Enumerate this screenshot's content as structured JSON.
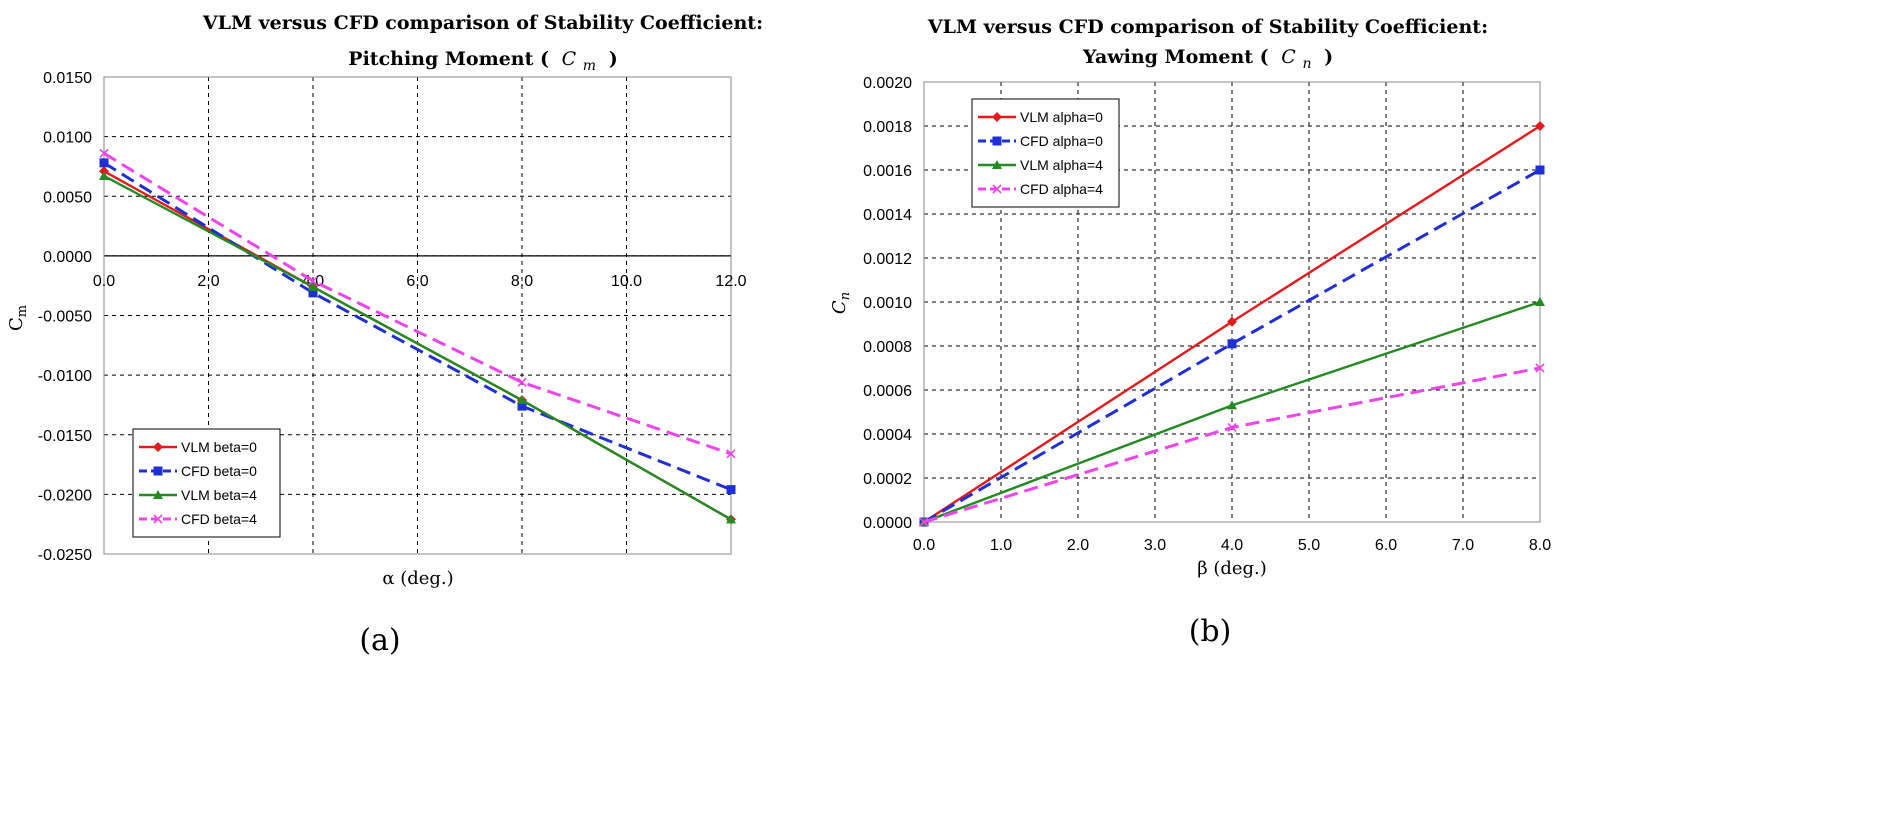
{
  "chart_data": [
    {
      "type": "line",
      "title": "VLM versus CFD comparison of Stability Coefficient:",
      "subtitle": "Pitching Moment ( Cm )",
      "subtitle_text": "Pitching Moment (",
      "subtitle_symbol": "C",
      "subtitle_symbol_sub": "m",
      "subtitle_close": ")",
      "xlabel": "α (deg.)",
      "ylabel": "Cm",
      "ylabel_main": "C",
      "ylabel_sub": "m",
      "caption": "(a)",
      "xlim": [
        0,
        12
      ],
      "ylim": [
        -0.025,
        0.015
      ],
      "xticks": [
        0,
        2,
        4,
        6,
        8,
        10,
        12
      ],
      "xtick_labels": [
        "0.0",
        "2.0",
        "4.0",
        "6.0",
        "8.0",
        "10.0",
        "12.0"
      ],
      "yticks": [
        0.015,
        0.01,
        0.005,
        0,
        -0.005,
        -0.01,
        -0.015,
        -0.02,
        -0.025
      ],
      "ytick_labels": [
        "0.0150",
        "0.0100",
        "0.0050",
        "0.0000",
        "-0.0050",
        "-0.0100",
        "-0.0150",
        "-0.0200",
        "-0.0250"
      ],
      "grid": true,
      "legend_position": "bottom-left",
      "series": [
        {
          "name": "VLM beta=0",
          "color": "#e31a1c",
          "dash": "solid",
          "marker": "diamond",
          "x": [
            0,
            4,
            8,
            12
          ],
          "values": [
            0.0071,
            -0.0026,
            -0.0121,
            -0.0221
          ]
        },
        {
          "name": "CFD beta=0",
          "color": "#1f2fd6",
          "dash": "dashed",
          "marker": "square",
          "x": [
            0,
            4,
            8,
            12
          ],
          "values": [
            0.0078,
            -0.0031,
            -0.0126,
            -0.0196
          ]
        },
        {
          "name": "VLM beta=4",
          "color": "#228b22",
          "dash": "solid",
          "marker": "triangle",
          "x": [
            0,
            4,
            8,
            12
          ],
          "values": [
            0.0067,
            -0.0026,
            -0.0121,
            -0.0221
          ]
        },
        {
          "name": "CFD beta=4",
          "color": "#ee44ee",
          "dash": "dashed",
          "marker": "x",
          "x": [
            0,
            4,
            8,
            12
          ],
          "values": [
            0.0086,
            -0.0021,
            -0.0106,
            -0.0166
          ]
        }
      ]
    },
    {
      "type": "line",
      "title": "VLM versus CFD comparison of Stability Coefficient:",
      "subtitle": "Yawing Moment ( Cn )",
      "subtitle_text": "Yawing Moment (",
      "subtitle_symbol": "C",
      "subtitle_symbol_sub": "n",
      "subtitle_close": ")",
      "xlabel": "β (deg.)",
      "ylabel": "Cn",
      "ylabel_main": "C",
      "ylabel_sub": "n",
      "caption": "(b)",
      "xlim": [
        0,
        8
      ],
      "ylim": [
        0,
        0.002
      ],
      "xticks": [
        0,
        1,
        2,
        3,
        4,
        5,
        6,
        7,
        8
      ],
      "xtick_labels": [
        "0.0",
        "1.0",
        "2.0",
        "3.0",
        "4.0",
        "5.0",
        "6.0",
        "7.0",
        "8.0"
      ],
      "yticks": [
        0.002,
        0.0018,
        0.0016,
        0.0014,
        0.0012,
        0.001,
        0.0008,
        0.0006,
        0.0004,
        0.0002,
        0
      ],
      "ytick_labels": [
        "0.0020",
        "0.0018",
        "0.0016",
        "0.0014",
        "0.0012",
        "0.0010",
        "0.0008",
        "0.0006",
        "0.0004",
        "0.0002",
        "0.0000"
      ],
      "grid": true,
      "legend_position": "top-left",
      "series": [
        {
          "name": "VLM alpha=0",
          "color": "#e31a1c",
          "dash": "solid",
          "marker": "diamond",
          "x": [
            0,
            4,
            8
          ],
          "values": [
            0,
            0.00091,
            0.0018
          ]
        },
        {
          "name": "CFD alpha=0",
          "color": "#1f2fd6",
          "dash": "dashed",
          "marker": "square",
          "x": [
            0,
            4,
            8
          ],
          "values": [
            0,
            0.00081,
            0.0016
          ]
        },
        {
          "name": "VLM alpha=4",
          "color": "#228b22",
          "dash": "solid",
          "marker": "triangle",
          "x": [
            0,
            4,
            8
          ],
          "values": [
            0,
            0.00053,
            0.001
          ]
        },
        {
          "name": "CFD alpha=4",
          "color": "#ee44ee",
          "dash": "dashed",
          "marker": "x",
          "x": [
            0,
            4,
            8
          ],
          "values": [
            0,
            0.00043,
            0.0007
          ]
        }
      ]
    }
  ]
}
